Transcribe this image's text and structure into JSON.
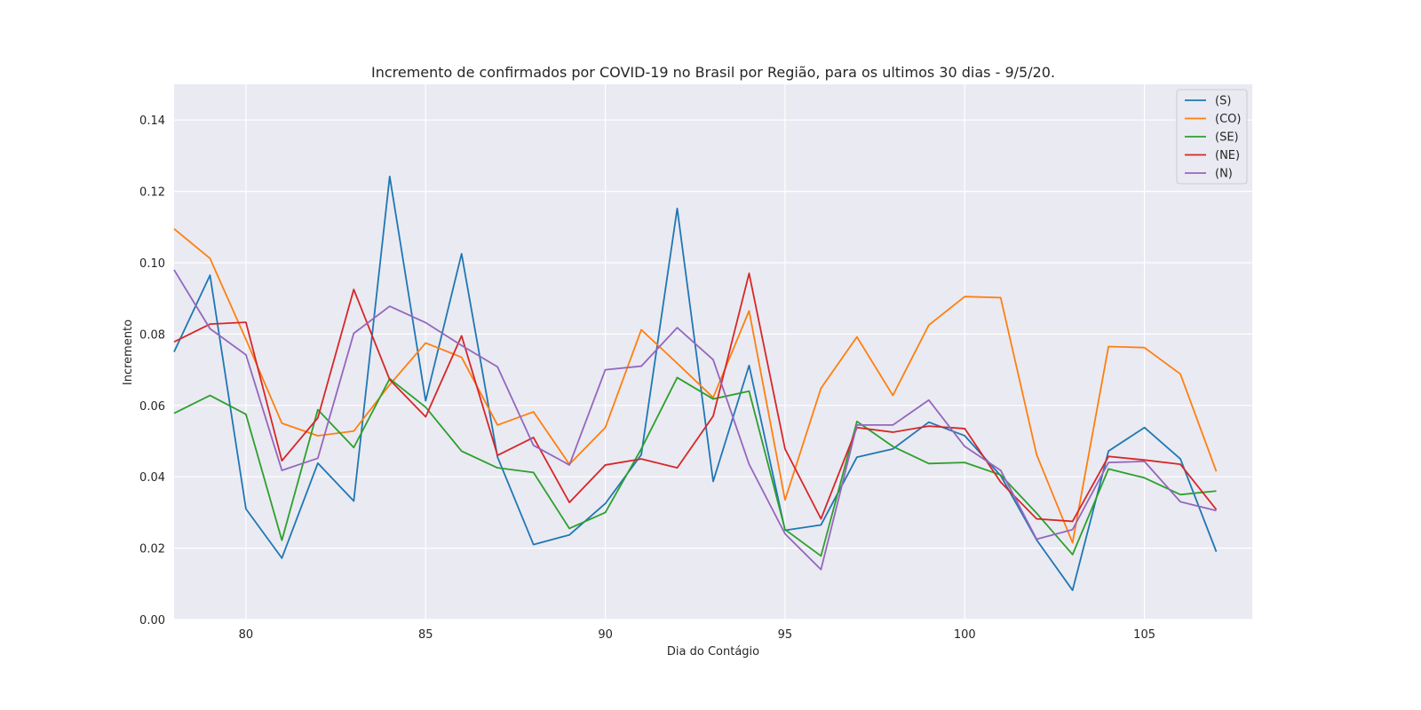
{
  "chart_data": {
    "type": "line",
    "title": "Incremento de confirmados por COVID-19 no Brasil por Região, para os ultimos 30 dias - 9/5/20.",
    "xlabel": "Dia do Contágio",
    "ylabel": "Incremento",
    "xlim": [
      78,
      108
    ],
    "ylim": [
      0,
      0.15
    ],
    "xticks": [
      80,
      85,
      90,
      95,
      100,
      105
    ],
    "yticks": [
      0,
      0.02,
      0.04,
      0.06,
      0.08,
      0.1,
      0.12,
      0.14
    ],
    "xtick_labels": [
      "80",
      "85",
      "90",
      "95",
      "100",
      "105"
    ],
    "ytick_labels": [
      "0.00",
      "0.02",
      "0.04",
      "0.06",
      "0.08",
      "0.10",
      "0.12",
      "0.14"
    ],
    "grid": true,
    "legend_position": "top-right",
    "x": [
      78,
      79,
      80,
      81,
      82,
      83,
      84,
      85,
      86,
      87,
      88,
      89,
      90,
      91,
      92,
      93,
      94,
      95,
      96,
      97,
      98,
      99,
      100,
      101,
      102,
      103,
      104,
      105,
      106,
      107
    ],
    "series": [
      {
        "name": "(S)",
        "color": "#1f77b4",
        "values": [
          0.075,
          0.0965,
          0.031,
          0.0172,
          0.0438,
          0.0332,
          0.1242,
          0.0613,
          0.1025,
          0.0455,
          0.021,
          0.0237,
          0.0325,
          0.0462,
          0.1152,
          0.0387,
          0.0712,
          0.025,
          0.0265,
          0.0455,
          0.0478,
          0.0553,
          0.0515,
          0.0403,
          0.0223,
          0.0082,
          0.0472,
          0.0538,
          0.045,
          0.019
        ]
      },
      {
        "name": "(CO)",
        "color": "#ff7f0e",
        "values": [
          0.1095,
          0.1012,
          0.0785,
          0.055,
          0.0515,
          0.0528,
          0.0658,
          0.0775,
          0.0735,
          0.0545,
          0.0582,
          0.0435,
          0.0538,
          0.0812,
          0.0718,
          0.0622,
          0.0865,
          0.0335,
          0.0648,
          0.0792,
          0.0628,
          0.0825,
          0.0905,
          0.0902,
          0.0462,
          0.0215,
          0.0765,
          0.0762,
          0.0688,
          0.0415
        ]
      },
      {
        "name": "(SE)",
        "color": "#2ca02c",
        "values": [
          0.0578,
          0.0628,
          0.0575,
          0.0222,
          0.0588,
          0.0482,
          0.0675,
          0.0595,
          0.0472,
          0.0425,
          0.0412,
          0.0255,
          0.03,
          0.0478,
          0.0678,
          0.0618,
          0.064,
          0.0252,
          0.0178,
          0.0555,
          0.0485,
          0.0437,
          0.044,
          0.0405,
          0.0298,
          0.0182,
          0.0422,
          0.0397,
          0.035,
          0.036
        ]
      },
      {
        "name": "(NE)",
        "color": "#d62728",
        "values": [
          0.0778,
          0.0828,
          0.0833,
          0.0445,
          0.0565,
          0.0925,
          0.0672,
          0.0568,
          0.0795,
          0.046,
          0.051,
          0.0328,
          0.0433,
          0.045,
          0.0425,
          0.057,
          0.097,
          0.0478,
          0.0282,
          0.0538,
          0.0525,
          0.0542,
          0.0535,
          0.0385,
          0.0282,
          0.0275,
          0.0457,
          0.0447,
          0.0435,
          0.0308
        ]
      },
      {
        "name": "(N)",
        "color": "#9467bd",
        "values": [
          0.098,
          0.0815,
          0.0742,
          0.0418,
          0.0452,
          0.0802,
          0.0878,
          0.0832,
          0.0768,
          0.0708,
          0.0488,
          0.0433,
          0.07,
          0.071,
          0.0818,
          0.0728,
          0.0435,
          0.024,
          0.014,
          0.0545,
          0.0545,
          0.0615,
          0.0485,
          0.0418,
          0.0225,
          0.0252,
          0.044,
          0.0443,
          0.033,
          0.0305
        ]
      }
    ]
  }
}
